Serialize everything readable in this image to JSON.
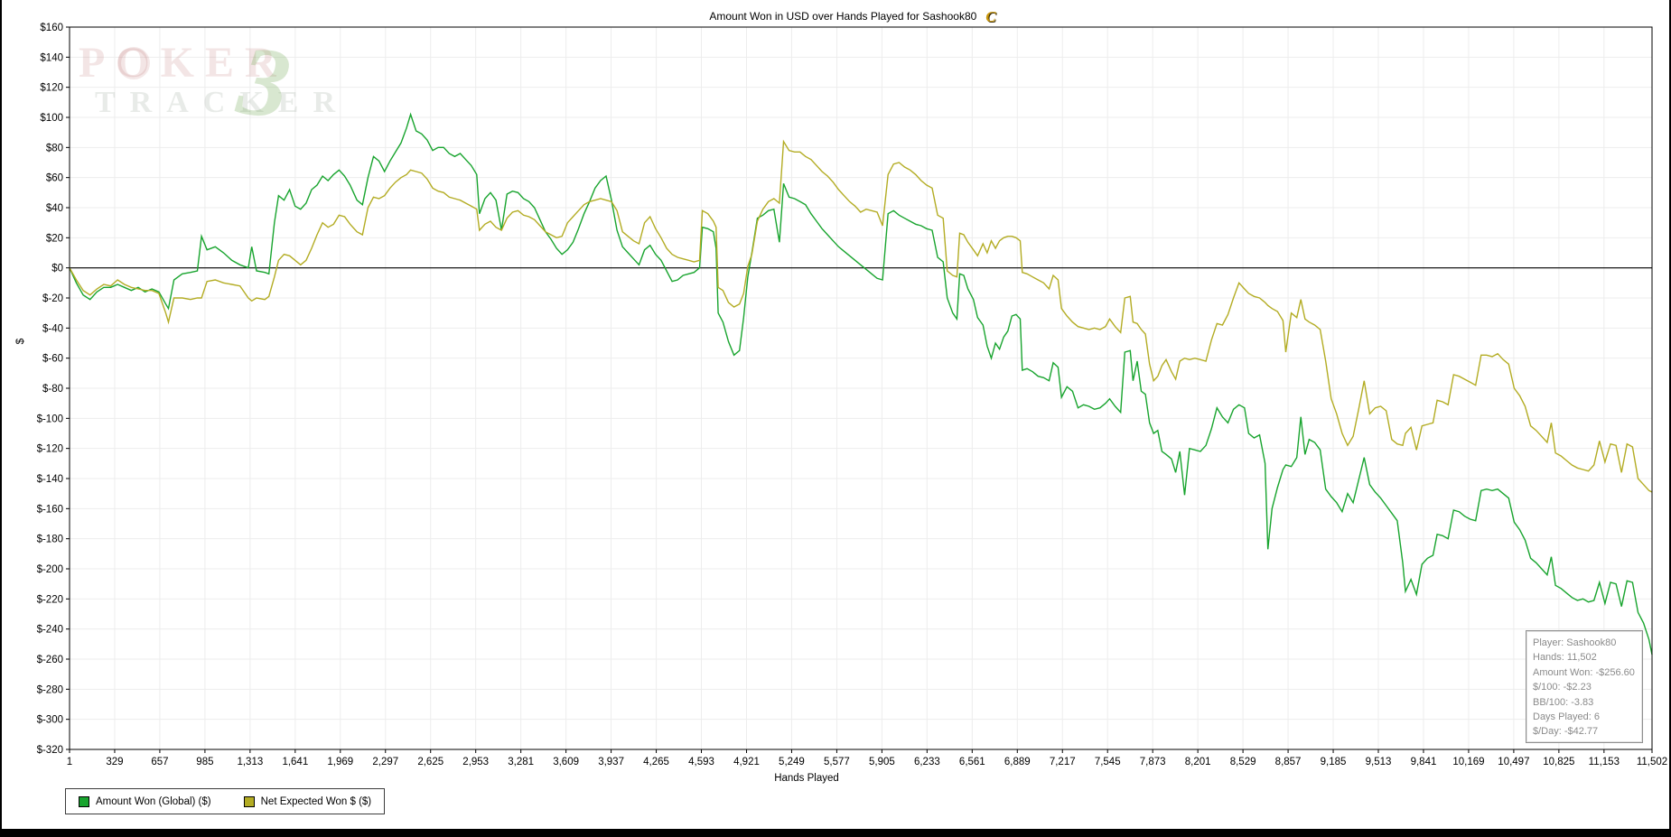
{
  "window": {
    "logo_glyph": "C"
  },
  "watermark": {
    "text_top": "POKER",
    "text_bottom": "TRACKER",
    "numeral": "3"
  },
  "info_box": {
    "lines": [
      "Player: Sashook80",
      "Hands: 11,502",
      "Amount Won: -$256.60",
      "$/100: -$2.23",
      "BB/100: -3.83",
      "Days Played: 6",
      "$/Day: -$42.77"
    ]
  },
  "chart_data": {
    "type": "line",
    "title": "Amount Won in USD over Hands Played for Sashook80",
    "xlabel": "Hands Played",
    "ylabel": "$",
    "xlim": [
      1,
      11502
    ],
    "ylim": [
      -320,
      160
    ],
    "y_tick_step": 20,
    "grid": true,
    "zero_line": true,
    "legend_position": "bottom-left",
    "x_ticks": [
      1,
      329,
      657,
      985,
      1313,
      1641,
      1969,
      2297,
      2625,
      2953,
      3281,
      3609,
      3937,
      4265,
      4593,
      4921,
      5249,
      5577,
      5905,
      6233,
      6561,
      6889,
      7217,
      7545,
      7873,
      8201,
      8529,
      8857,
      9185,
      9513,
      9841,
      10169,
      10497,
      10825,
      11153,
      11502
    ],
    "series": [
      {
        "name": "Amount Won (Global) ($)",
        "color": "#18a42e"
      },
      {
        "name": "Net Expected Won $ ($)",
        "color": "#b3ac23"
      }
    ],
    "rows_format": [
      "hands",
      "amount_won_usd",
      "net_expected_won_usd"
    ],
    "rows": [
      [
        1,
        0,
        0
      ],
      [
        50,
        -10,
        -8
      ],
      [
        100,
        -18,
        -15
      ],
      [
        150,
        -21,
        -18
      ],
      [
        200,
        -16,
        -14
      ],
      [
        250,
        -13,
        -11
      ],
      [
        300,
        -13,
        -12
      ],
      [
        350,
        -11,
        -8
      ],
      [
        400,
        -13,
        -11
      ],
      [
        450,
        -15,
        -13
      ],
      [
        500,
        -13,
        -14
      ],
      [
        550,
        -16,
        -15
      ],
      [
        600,
        -14,
        -15
      ],
      [
        650,
        -16,
        -17
      ],
      [
        700,
        -24,
        -30
      ],
      [
        720,
        -27,
        -36
      ],
      [
        760,
        -8,
        -20
      ],
      [
        820,
        -4,
        -20
      ],
      [
        880,
        -3,
        -21
      ],
      [
        930,
        -2,
        -20
      ],
      [
        960,
        21,
        -20
      ],
      [
        1000,
        12,
        -9
      ],
      [
        1060,
        14,
        -8
      ],
      [
        1120,
        10,
        -10
      ],
      [
        1180,
        5,
        -11
      ],
      [
        1240,
        2,
        -12
      ],
      [
        1300,
        0,
        -20
      ],
      [
        1325,
        14,
        -22
      ],
      [
        1360,
        -2,
        -20
      ],
      [
        1420,
        -3,
        -21
      ],
      [
        1450,
        -4,
        -19
      ],
      [
        1490,
        30,
        -6
      ],
      [
        1520,
        48,
        5
      ],
      [
        1560,
        45,
        9
      ],
      [
        1600,
        52,
        8
      ],
      [
        1640,
        41,
        5
      ],
      [
        1680,
        39,
        2
      ],
      [
        1720,
        43,
        5
      ],
      [
        1760,
        52,
        13
      ],
      [
        1800,
        55,
        22
      ],
      [
        1840,
        61,
        30
      ],
      [
        1880,
        58,
        27
      ],
      [
        1920,
        62,
        29
      ],
      [
        1960,
        65,
        35
      ],
      [
        2000,
        61,
        34
      ],
      [
        2040,
        55,
        29
      ],
      [
        2090,
        45,
        24
      ],
      [
        2130,
        42,
        22
      ],
      [
        2170,
        60,
        40
      ],
      [
        2210,
        74,
        47
      ],
      [
        2250,
        71,
        46
      ],
      [
        2290,
        64,
        48
      ],
      [
        2330,
        71,
        53
      ],
      [
        2370,
        77,
        57
      ],
      [
        2410,
        83,
        60
      ],
      [
        2450,
        93,
        62
      ],
      [
        2480,
        102,
        65
      ],
      [
        2520,
        91,
        64
      ],
      [
        2560,
        89,
        63
      ],
      [
        2600,
        85,
        59
      ],
      [
        2640,
        78,
        53
      ],
      [
        2680,
        80,
        51
      ],
      [
        2720,
        80,
        50
      ],
      [
        2760,
        76,
        47
      ],
      [
        2800,
        74,
        46
      ],
      [
        2840,
        76,
        45
      ],
      [
        2880,
        72,
        43
      ],
      [
        2920,
        68,
        41
      ],
      [
        2960,
        62,
        39
      ],
      [
        2980,
        36,
        25
      ],
      [
        3020,
        46,
        29
      ],
      [
        3060,
        50,
        31
      ],
      [
        3100,
        45,
        27
      ],
      [
        3140,
        25,
        25
      ],
      [
        3180,
        49,
        33
      ],
      [
        3220,
        51,
        37
      ],
      [
        3260,
        50,
        38
      ],
      [
        3300,
        46,
        35
      ],
      [
        3340,
        44,
        34
      ],
      [
        3380,
        40,
        32
      ],
      [
        3420,
        32,
        28
      ],
      [
        3460,
        24,
        24
      ],
      [
        3500,
        19,
        22
      ],
      [
        3540,
        13,
        20
      ],
      [
        3580,
        9,
        21
      ],
      [
        3620,
        12,
        30
      ],
      [
        3660,
        17,
        34
      ],
      [
        3700,
        26,
        38
      ],
      [
        3740,
        36,
        42
      ],
      [
        3780,
        44,
        44
      ],
      [
        3820,
        53,
        45
      ],
      [
        3860,
        58,
        46
      ],
      [
        3900,
        61,
        45
      ],
      [
        3940,
        45,
        44
      ],
      [
        3980,
        25,
        38
      ],
      [
        4020,
        14,
        24
      ],
      [
        4060,
        10,
        21
      ],
      [
        4100,
        6,
        18
      ],
      [
        4140,
        2,
        16
      ],
      [
        4180,
        12,
        30
      ],
      [
        4220,
        15,
        34
      ],
      [
        4260,
        9,
        26
      ],
      [
        4300,
        5,
        20
      ],
      [
        4340,
        -2,
        13
      ],
      [
        4380,
        -9,
        9
      ],
      [
        4420,
        -8,
        7
      ],
      [
        4460,
        -5,
        6
      ],
      [
        4500,
        -4,
        5
      ],
      [
        4540,
        -3,
        4
      ],
      [
        4580,
        0,
        5
      ],
      [
        4600,
        27,
        38
      ],
      [
        4640,
        26,
        36
      ],
      [
        4680,
        24,
        31
      ],
      [
        4700,
        13,
        27
      ],
      [
        4715,
        -30,
        -13
      ],
      [
        4750,
        -36,
        -15
      ],
      [
        4790,
        -49,
        -23
      ],
      [
        4830,
        -58,
        -26
      ],
      [
        4870,
        -55,
        -24
      ],
      [
        4900,
        -33,
        -17
      ],
      [
        4930,
        -6,
        1
      ],
      [
        4960,
        10,
        9
      ],
      [
        5000,
        33,
        31
      ],
      [
        5040,
        35,
        39
      ],
      [
        5080,
        38,
        44
      ],
      [
        5120,
        39,
        46
      ],
      [
        5160,
        17,
        43
      ],
      [
        5190,
        56,
        84
      ],
      [
        5230,
        47,
        78
      ],
      [
        5270,
        46,
        77
      ],
      [
        5310,
        44,
        77
      ],
      [
        5350,
        42,
        74
      ],
      [
        5390,
        36,
        72
      ],
      [
        5430,
        31,
        68
      ],
      [
        5470,
        26,
        64
      ],
      [
        5510,
        22,
        61
      ],
      [
        5550,
        18,
        57
      ],
      [
        5590,
        14,
        52
      ],
      [
        5630,
        11,
        48
      ],
      [
        5670,
        8,
        44
      ],
      [
        5710,
        5,
        41
      ],
      [
        5750,
        2,
        37
      ],
      [
        5790,
        -1,
        39
      ],
      [
        5830,
        -4,
        38
      ],
      [
        5870,
        -7,
        37
      ],
      [
        5910,
        -8,
        28
      ],
      [
        5950,
        36,
        62
      ],
      [
        5990,
        38,
        69
      ],
      [
        6030,
        35,
        70
      ],
      [
        6070,
        33,
        67
      ],
      [
        6110,
        31,
        65
      ],
      [
        6150,
        29,
        62
      ],
      [
        6190,
        28,
        58
      ],
      [
        6230,
        26,
        55
      ],
      [
        6270,
        25,
        53
      ],
      [
        6310,
        7,
        35
      ],
      [
        6350,
        4,
        33
      ],
      [
        6380,
        -20,
        -2
      ],
      [
        6420,
        -30,
        -5
      ],
      [
        6450,
        -34,
        -6
      ],
      [
        6470,
        -4,
        23
      ],
      [
        6500,
        -5,
        22
      ],
      [
        6530,
        -14,
        17
      ],
      [
        6570,
        -21,
        12
      ],
      [
        6600,
        -33,
        8
      ],
      [
        6640,
        -38,
        16
      ],
      [
        6670,
        -52,
        10
      ],
      [
        6700,
        -60,
        18
      ],
      [
        6730,
        -50,
        13
      ],
      [
        6760,
        -54,
        18
      ],
      [
        6790,
        -46,
        20
      ],
      [
        6820,
        -42,
        21
      ],
      [
        6850,
        -32,
        21
      ],
      [
        6880,
        -31,
        20
      ],
      [
        6910,
        -34,
        18
      ],
      [
        6925,
        -68,
        -3
      ],
      [
        6960,
        -67,
        -4
      ],
      [
        7000,
        -69,
        -6
      ],
      [
        7040,
        -72,
        -8
      ],
      [
        7080,
        -73,
        -10
      ],
      [
        7120,
        -75,
        -14
      ],
      [
        7150,
        -63,
        -5
      ],
      [
        7185,
        -66,
        -8
      ],
      [
        7210,
        -86,
        -27
      ],
      [
        7250,
        -79,
        -32
      ],
      [
        7290,
        -82,
        -36
      ],
      [
        7330,
        -93,
        -39
      ],
      [
        7370,
        -91,
        -40
      ],
      [
        7410,
        -92,
        -41
      ],
      [
        7450,
        -94,
        -40
      ],
      [
        7490,
        -93,
        -41
      ],
      [
        7530,
        -90,
        -39
      ],
      [
        7560,
        -87,
        -34
      ],
      [
        7600,
        -92,
        -39
      ],
      [
        7640,
        -96,
        -43
      ],
      [
        7670,
        -56,
        -20
      ],
      [
        7710,
        -55,
        -19
      ],
      [
        7730,
        -75,
        -36
      ],
      [
        7760,
        -62,
        -37
      ],
      [
        7790,
        -82,
        -41
      ],
      [
        7820,
        -84,
        -44
      ],
      [
        7850,
        -103,
        -64
      ],
      [
        7880,
        -110,
        -75
      ],
      [
        7910,
        -108,
        -72
      ],
      [
        7940,
        -122,
        -65
      ],
      [
        7970,
        -124,
        -61
      ],
      [
        8010,
        -127,
        -69
      ],
      [
        8040,
        -136,
        -74
      ],
      [
        8070,
        -122,
        -62
      ],
      [
        8105,
        -151,
        -60
      ],
      [
        8140,
        -120,
        -61
      ],
      [
        8180,
        -121,
        -60
      ],
      [
        8220,
        -122,
        -61
      ],
      [
        8260,
        -118,
        -62
      ],
      [
        8300,
        -107,
        -48
      ],
      [
        8340,
        -93,
        -37
      ],
      [
        8380,
        -99,
        -38
      ],
      [
        8420,
        -103,
        -31
      ],
      [
        8460,
        -94,
        -20
      ],
      [
        8500,
        -91,
        -10
      ],
      [
        8540,
        -93,
        -14
      ],
      [
        8570,
        -110,
        -17
      ],
      [
        8610,
        -113,
        -19
      ],
      [
        8650,
        -111,
        -20
      ],
      [
        8690,
        -130,
        -23
      ],
      [
        8710,
        -187,
        -25
      ],
      [
        8740,
        -160,
        -27
      ],
      [
        8780,
        -146,
        -29
      ],
      [
        8820,
        -134,
        -35
      ],
      [
        8840,
        -131,
        -56
      ],
      [
        8880,
        -132,
        -30
      ],
      [
        8920,
        -126,
        -33
      ],
      [
        8950,
        -99,
        -21
      ],
      [
        8980,
        -124,
        -34
      ],
      [
        9010,
        -114,
        -36
      ],
      [
        9050,
        -116,
        -38
      ],
      [
        9090,
        -121,
        -41
      ],
      [
        9130,
        -147,
        -62
      ],
      [
        9170,
        -152,
        -87
      ],
      [
        9210,
        -156,
        -97
      ],
      [
        9250,
        -162,
        -110
      ],
      [
        9290,
        -150,
        -118
      ],
      [
        9330,
        -156,
        -112
      ],
      [
        9370,
        -141,
        -94
      ],
      [
        9410,
        -126,
        -75
      ],
      [
        9450,
        -144,
        -97
      ],
      [
        9490,
        -149,
        -93
      ],
      [
        9530,
        -153,
        -92
      ],
      [
        9570,
        -158,
        -95
      ],
      [
        9610,
        -163,
        -114
      ],
      [
        9650,
        -168,
        -117
      ],
      [
        9690,
        -196,
        -118
      ],
      [
        9710,
        -215,
        -110
      ],
      [
        9750,
        -207,
        -106
      ],
      [
        9790,
        -217,
        -121
      ],
      [
        9830,
        -197,
        -105
      ],
      [
        9870,
        -193,
        -104
      ],
      [
        9910,
        -191,
        -103
      ],
      [
        9940,
        -177,
        -88
      ],
      [
        9980,
        -178,
        -89
      ],
      [
        10020,
        -180,
        -91
      ],
      [
        10060,
        -161,
        -71
      ],
      [
        10100,
        -162,
        -72
      ],
      [
        10140,
        -165,
        -74
      ],
      [
        10180,
        -167,
        -76
      ],
      [
        10220,
        -168,
        -78
      ],
      [
        10260,
        -148,
        -58
      ],
      [
        10300,
        -147,
        -58
      ],
      [
        10340,
        -148,
        -59
      ],
      [
        10380,
        -147,
        -57
      ],
      [
        10420,
        -150,
        -61
      ],
      [
        10460,
        -153,
        -64
      ],
      [
        10500,
        -169,
        -80
      ],
      [
        10540,
        -174,
        -85
      ],
      [
        10580,
        -181,
        -92
      ],
      [
        10620,
        -193,
        -105
      ],
      [
        10660,
        -196,
        -108
      ],
      [
        10700,
        -200,
        -112
      ],
      [
        10740,
        -204,
        -116
      ],
      [
        10770,
        -192,
        -103
      ],
      [
        10800,
        -211,
        -123
      ],
      [
        10840,
        -213,
        -125
      ],
      [
        10880,
        -216,
        -128
      ],
      [
        10920,
        -219,
        -131
      ],
      [
        10960,
        -221,
        -133
      ],
      [
        11000,
        -220,
        -134
      ],
      [
        11040,
        -222,
        -135
      ],
      [
        11080,
        -221,
        -131
      ],
      [
        11120,
        -209,
        -115
      ],
      [
        11160,
        -223,
        -129
      ],
      [
        11200,
        -209,
        -117
      ],
      [
        11240,
        -210,
        -118
      ],
      [
        11280,
        -225,
        -136
      ],
      [
        11320,
        -208,
        -117
      ],
      [
        11360,
        -209,
        -119
      ],
      [
        11400,
        -229,
        -140
      ],
      [
        11440,
        -236,
        -144
      ],
      [
        11480,
        -247,
        -148
      ],
      [
        11502,
        -257,
        -149
      ]
    ]
  }
}
